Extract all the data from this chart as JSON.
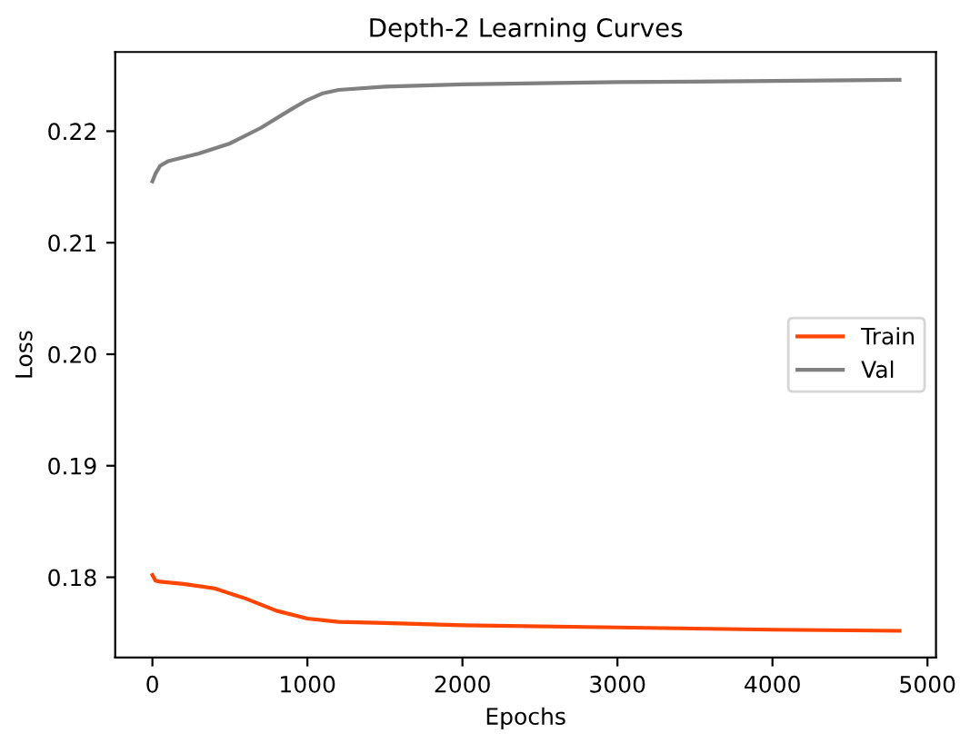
{
  "chart_data": {
    "type": "line",
    "title": "Depth-2 Learning Curves",
    "xlabel": "Epochs",
    "ylabel": "Loss",
    "xlim": [
      -240,
      5055
    ],
    "ylim": [
      0.1728,
      0.2271
    ],
    "xticks": [
      0,
      1000,
      2000,
      3000,
      4000,
      5000
    ],
    "yticks": [
      {
        "value": 0.18,
        "label": "0.18"
      },
      {
        "value": 0.19,
        "label": "0.19"
      },
      {
        "value": 0.2,
        "label": "0.20"
      },
      {
        "value": 0.21,
        "label": "0.21"
      },
      {
        "value": 0.22,
        "label": "0.22"
      }
    ],
    "legend": "right",
    "grid": false,
    "series": [
      {
        "name": "Train",
        "color": "#ff4500",
        "x": [
          0,
          20,
          50,
          200,
          400,
          600,
          800,
          1000,
          1200,
          1500,
          2000,
          3000,
          4000,
          4820
        ],
        "values": [
          0.1802,
          0.1797,
          0.1796,
          0.1794,
          0.179,
          0.1781,
          0.177,
          0.1763,
          0.176,
          0.1759,
          0.1757,
          0.1755,
          0.1753,
          0.1752
        ]
      },
      {
        "name": "Val",
        "color": "#808080",
        "x": [
          0,
          20,
          50,
          100,
          300,
          500,
          700,
          900,
          1000,
          1100,
          1200,
          1500,
          2000,
          3000,
          4000,
          4820
        ],
        "values": [
          0.2155,
          0.2162,
          0.2169,
          0.2173,
          0.218,
          0.2189,
          0.2203,
          0.222,
          0.2228,
          0.2234,
          0.2237,
          0.224,
          0.2242,
          0.2244,
          0.2245,
          0.2246
        ]
      }
    ]
  }
}
